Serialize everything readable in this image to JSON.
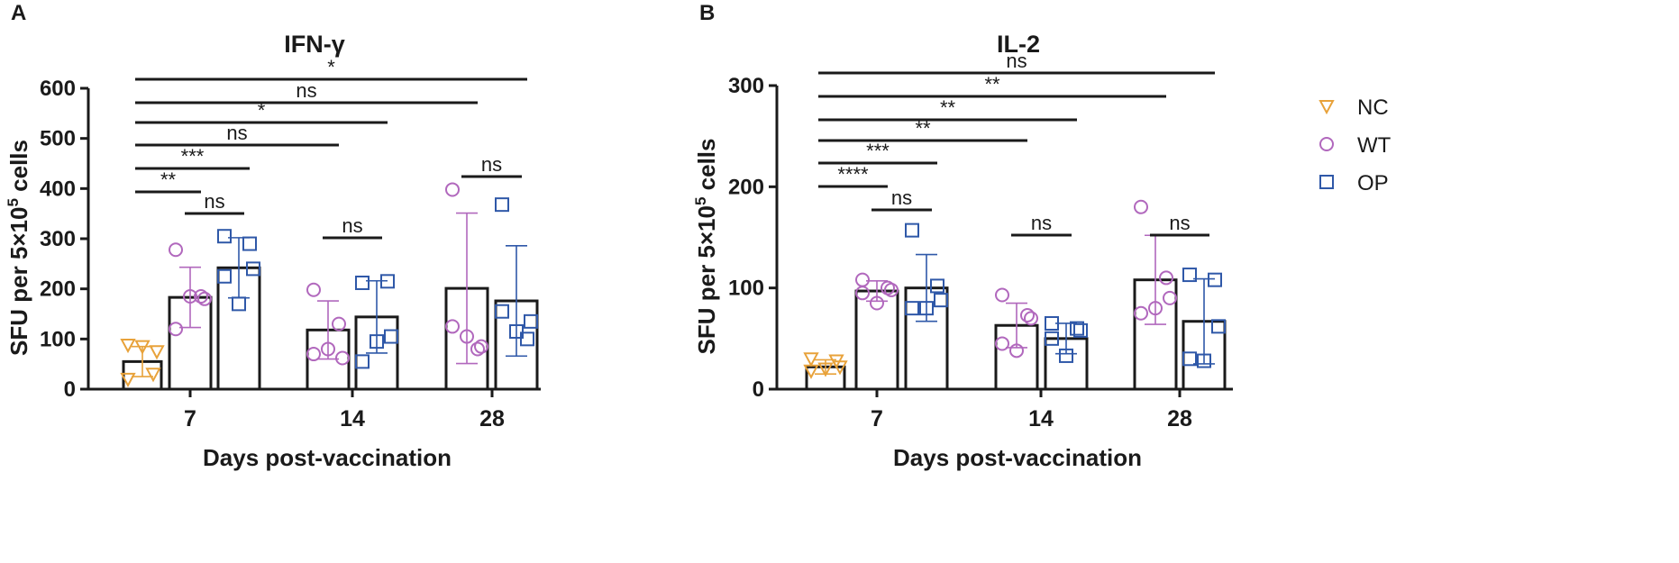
{
  "colors": {
    "NC": "#e8a23a",
    "WT": "#b168bd",
    "OP": "#2f58a8",
    "axis": "#1a1a1a"
  },
  "legend": [
    {
      "group": "NC",
      "label": "NC",
      "marker": "triangle-down"
    },
    {
      "group": "WT",
      "label": "WT",
      "marker": "circle"
    },
    {
      "group": "OP",
      "label": "OP",
      "marker": "square"
    }
  ],
  "chart_data": [
    {
      "panel": "A",
      "type": "bar",
      "title": "IFN-γ",
      "xlabel": "Days post-vaccination",
      "ylabel_prefix": "SFU per 5×10",
      "ylabel_sup": "5",
      "ylabel_suffix": " cells",
      "ylim": [
        0,
        600
      ],
      "yticks": [
        0,
        100,
        200,
        300,
        400,
        500,
        600
      ],
      "categories": [
        "7",
        "14",
        "28"
      ],
      "bars": [
        {
          "group": "NC",
          "day": "7",
          "mean": 55,
          "sd": 30,
          "points": [
            20,
            30,
            75,
            88,
            85
          ]
        },
        {
          "group": "WT",
          "day": "7",
          "mean": 183,
          "sd": 60,
          "points": [
            278,
            185,
            180,
            120,
            185
          ]
        },
        {
          "group": "OP",
          "day": "7",
          "mean": 242,
          "sd": 60,
          "points": [
            305,
            290,
            240,
            225,
            170
          ]
        },
        {
          "group": "WT",
          "day": "14",
          "mean": 118,
          "sd": 58,
          "points": [
            198,
            130,
            62,
            70,
            80
          ]
        },
        {
          "group": "OP",
          "day": "14",
          "mean": 144,
          "sd": 72,
          "points": [
            212,
            215,
            105,
            55,
            95
          ]
        },
        {
          "group": "WT",
          "day": "28",
          "mean": 201,
          "sd": 150,
          "points": [
            398,
            80,
            85,
            125,
            105
          ]
        },
        {
          "group": "OP",
          "day": "28",
          "mean": 176,
          "sd": 110,
          "points": [
            368,
            100,
            135,
            155,
            115
          ]
        }
      ],
      "comparisons": [
        {
          "from": [
            "7",
            "NC"
          ],
          "to": [
            "28",
            "OP"
          ],
          "label": "*"
        },
        {
          "from": [
            "7",
            "NC"
          ],
          "to": [
            "28",
            "WT"
          ],
          "label": "ns"
        },
        {
          "from": [
            "7",
            "NC"
          ],
          "to": [
            "14",
            "OP"
          ],
          "label": "*"
        },
        {
          "from": [
            "7",
            "NC"
          ],
          "to": [
            "14",
            "WT"
          ],
          "label": "ns"
        },
        {
          "from": [
            "7",
            "NC"
          ],
          "to": [
            "7",
            "OP"
          ],
          "label": "***"
        },
        {
          "from": [
            "7",
            "NC"
          ],
          "to": [
            "7",
            "WT"
          ],
          "label": "**"
        },
        {
          "from": [
            "7",
            "WT"
          ],
          "to": [
            "7",
            "OP"
          ],
          "label": "ns"
        },
        {
          "from": [
            "14",
            "WT"
          ],
          "to": [
            "14",
            "OP"
          ],
          "label": "ns"
        },
        {
          "from": [
            "28",
            "WT"
          ],
          "to": [
            "28",
            "OP"
          ],
          "label": "ns"
        }
      ]
    },
    {
      "panel": "B",
      "type": "bar",
      "title": "IL-2",
      "xlabel": "Days post-vaccination",
      "ylabel_prefix": "SFU per 5×10",
      "ylabel_sup": "5",
      "ylabel_suffix": " cells",
      "ylim": [
        0,
        300
      ],
      "yticks": [
        0,
        100,
        200,
        300
      ],
      "categories": [
        "7",
        "14",
        "28"
      ],
      "bars": [
        {
          "group": "NC",
          "day": "7",
          "mean": 22,
          "sd": 7,
          "points": [
            30,
            28,
            22,
            18,
            20
          ]
        },
        {
          "group": "WT",
          "day": "7",
          "mean": 97,
          "sd": 10,
          "points": [
            108,
            100,
            98,
            95,
            85
          ]
        },
        {
          "group": "OP",
          "day": "7",
          "mean": 100,
          "sd": 33,
          "points": [
            157,
            102,
            88,
            80,
            80
          ]
        },
        {
          "group": "WT",
          "day": "14",
          "mean": 63,
          "sd": 22,
          "points": [
            93,
            73,
            70,
            45,
            38
          ]
        },
        {
          "group": "OP",
          "day": "14",
          "mean": 50,
          "sd": 15,
          "points": [
            65,
            60,
            58,
            50,
            33
          ]
        },
        {
          "group": "WT",
          "day": "28",
          "mean": 108,
          "sd": 44,
          "points": [
            180,
            110,
            90,
            75,
            80
          ]
        },
        {
          "group": "OP",
          "day": "28",
          "mean": 67,
          "sd": 42,
          "points": [
            113,
            108,
            62,
            30,
            28
          ]
        }
      ],
      "comparisons": [
        {
          "from": [
            "7",
            "NC"
          ],
          "to": [
            "28",
            "OP"
          ],
          "label": "ns"
        },
        {
          "from": [
            "7",
            "NC"
          ],
          "to": [
            "28",
            "WT"
          ],
          "label": "**"
        },
        {
          "from": [
            "7",
            "NC"
          ],
          "to": [
            "14",
            "OP"
          ],
          "label": "**"
        },
        {
          "from": [
            "7",
            "NC"
          ],
          "to": [
            "14",
            "WT"
          ],
          "label": "**"
        },
        {
          "from": [
            "7",
            "NC"
          ],
          "to": [
            "7",
            "OP"
          ],
          "label": "***"
        },
        {
          "from": [
            "7",
            "NC"
          ],
          "to": [
            "7",
            "WT"
          ],
          "label": "****"
        },
        {
          "from": [
            "7",
            "WT"
          ],
          "to": [
            "7",
            "OP"
          ],
          "label": "ns"
        },
        {
          "from": [
            "14",
            "WT"
          ],
          "to": [
            "14",
            "OP"
          ],
          "label": "ns"
        },
        {
          "from": [
            "28",
            "WT"
          ],
          "to": [
            "28",
            "OP"
          ],
          "label": "ns"
        }
      ]
    }
  ]
}
